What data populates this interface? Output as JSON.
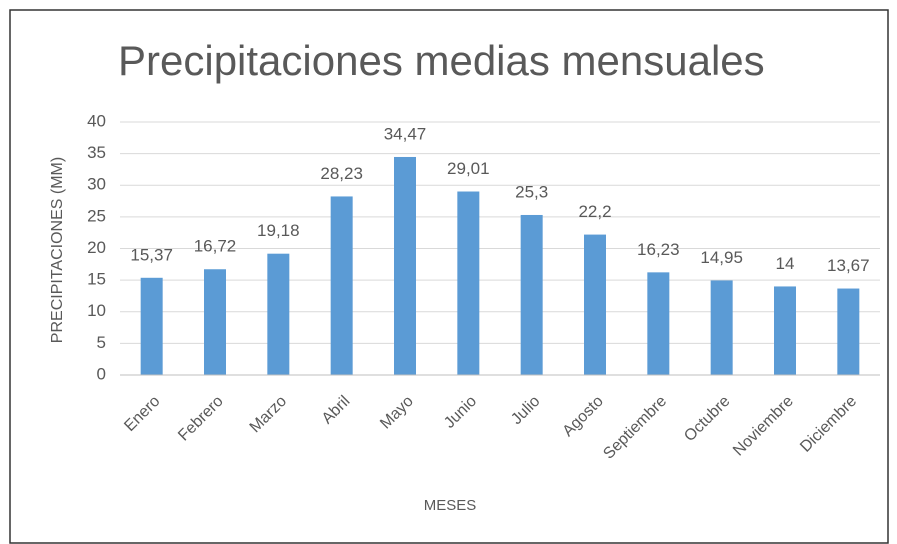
{
  "chart_data": {
    "type": "bar",
    "title": "Precipitaciones medias mensuales",
    "x_label": "MESES",
    "y_label": "PRECIPITACIONES (MM)",
    "categories": [
      "Enero",
      "Febrero",
      "Marzo",
      "Abril",
      "Mayo",
      "Junio",
      "Julio",
      "Agosto",
      "Septiembre",
      "Octubre",
      "Noviembre",
      "Diciembre"
    ],
    "values": [
      15.37,
      16.72,
      19.18,
      28.23,
      34.47,
      29.01,
      25.3,
      22.2,
      16.23,
      14.95,
      14,
      13.67
    ],
    "value_labels": [
      "15,37",
      "16,72",
      "19,18",
      "28,23",
      "34,47",
      "29,01",
      "25,3",
      "22,2",
      "16,23",
      "14,95",
      "14",
      "13,67"
    ],
    "color": "#5b9bd5",
    "ylim": [
      0,
      40
    ],
    "yticks": [
      0,
      5,
      10,
      15,
      20,
      25,
      30,
      35,
      40
    ],
    "grid": true
  }
}
